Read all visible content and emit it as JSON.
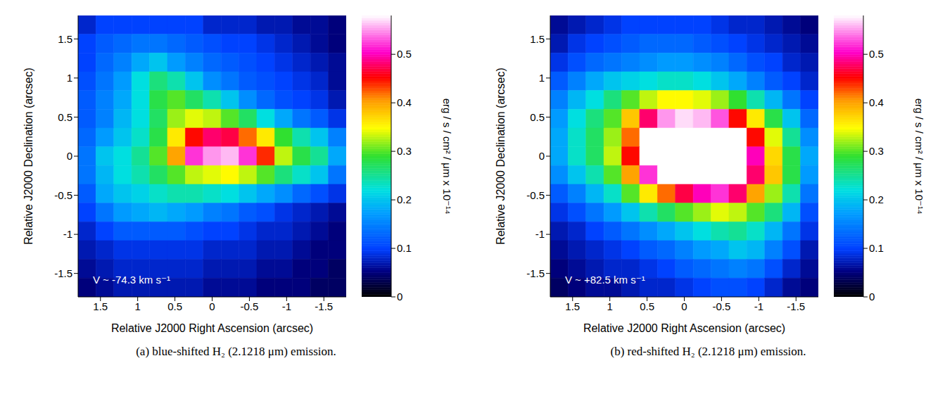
{
  "chart_data": [
    {
      "type": "heatmap",
      "title": "(a) blue-shifted H₂ (2.1218 μm) emission.",
      "xlabel": "Relative J2000 Right Ascension (arcsec)",
      "ylabel": "Relative J2000 Declination (arcsec)",
      "annotation": "V ~ -74.3 km s⁻¹",
      "xlim": [
        1.8,
        -1.8
      ],
      "ylim": [
        -1.8,
        1.8
      ],
      "xticks": [
        1.5,
        1,
        0.5,
        0,
        -0.5,
        -1,
        -1.5
      ],
      "yticks": [
        -1.5,
        -1,
        -0.5,
        0,
        0.5,
        1,
        1.5
      ],
      "x_edges": [
        1.8,
        1.56,
        1.32,
        1.08,
        0.84,
        0.6,
        0.36,
        0.12,
        -0.12,
        -0.36,
        -0.6,
        -0.84,
        -1.08,
        -1.32,
        -1.56,
        -1.8
      ],
      "y_edges": [
        1.8,
        1.56,
        1.32,
        1.08,
        0.84,
        0.6,
        0.36,
        0.12,
        -0.12,
        -0.36,
        -0.6,
        -0.84,
        -1.08,
        -1.32,
        -1.56,
        -1.8
      ],
      "cells": [
        [
          0.08,
          0.1,
          0.1,
          0.1,
          0.1,
          0.1,
          0.1,
          0.08,
          0.08,
          0.08,
          0.07,
          0.07,
          0.06,
          0.06,
          0.05
        ],
        [
          0.1,
          0.12,
          0.13,
          0.14,
          0.14,
          0.13,
          0.12,
          0.11,
          0.1,
          0.1,
          0.09,
          0.08,
          0.07,
          0.06,
          0.05
        ],
        [
          0.1,
          0.13,
          0.15,
          0.18,
          0.2,
          0.17,
          0.15,
          0.13,
          0.12,
          0.11,
          0.1,
          0.09,
          0.08,
          0.07,
          0.06
        ],
        [
          0.11,
          0.14,
          0.17,
          0.22,
          0.26,
          0.24,
          0.2,
          0.16,
          0.14,
          0.12,
          0.11,
          0.1,
          0.09,
          0.08,
          0.06
        ],
        [
          0.12,
          0.15,
          0.18,
          0.22,
          0.28,
          0.3,
          0.27,
          0.24,
          0.2,
          0.16,
          0.13,
          0.11,
          0.1,
          0.09,
          0.07
        ],
        [
          0.12,
          0.15,
          0.19,
          0.22,
          0.27,
          0.32,
          0.34,
          0.33,
          0.3,
          0.27,
          0.22,
          0.18,
          0.14,
          0.12,
          0.09
        ],
        [
          0.13,
          0.17,
          0.2,
          0.23,
          0.28,
          0.36,
          0.45,
          0.48,
          0.47,
          0.42,
          0.36,
          0.29,
          0.24,
          0.2,
          0.15
        ],
        [
          0.14,
          0.2,
          0.22,
          0.25,
          0.3,
          0.4,
          0.52,
          0.55,
          0.56,
          0.52,
          0.44,
          0.33,
          0.28,
          0.25,
          0.18
        ],
        [
          0.14,
          0.19,
          0.22,
          0.24,
          0.27,
          0.3,
          0.33,
          0.34,
          0.35,
          0.33,
          0.3,
          0.26,
          0.23,
          0.2,
          0.14
        ],
        [
          0.12,
          0.18,
          0.2,
          0.21,
          0.23,
          0.24,
          0.24,
          0.23,
          0.22,
          0.2,
          0.18,
          0.16,
          0.13,
          0.11,
          0.09
        ],
        [
          0.1,
          0.14,
          0.17,
          0.18,
          0.19,
          0.18,
          0.17,
          0.15,
          0.14,
          0.12,
          0.11,
          0.09,
          0.08,
          0.07,
          0.06
        ],
        [
          0.08,
          0.1,
          0.12,
          0.12,
          0.12,
          0.12,
          0.11,
          0.1,
          0.1,
          0.09,
          0.08,
          0.08,
          0.07,
          0.06,
          0.05
        ],
        [
          0.07,
          0.08,
          0.09,
          0.09,
          0.09,
          0.09,
          0.09,
          0.08,
          0.08,
          0.08,
          0.07,
          0.07,
          0.06,
          0.05,
          0.05
        ],
        [
          0.06,
          0.07,
          0.08,
          0.08,
          0.08,
          0.08,
          0.08,
          0.07,
          0.07,
          0.07,
          0.06,
          0.06,
          0.05,
          0.05,
          0.04
        ],
        [
          0.05,
          0.06,
          0.07,
          0.07,
          0.07,
          0.07,
          0.07,
          0.06,
          0.06,
          0.06,
          0.05,
          0.05,
          0.05,
          0.04,
          0.04
        ]
      ],
      "colorbar": {
        "range": [
          0,
          0.58
        ],
        "ticks": [
          0,
          0.1,
          0.2,
          0.3,
          0.4,
          0.5
        ],
        "label": "erg / s / cm² / μm  x 10⁻¹⁴"
      }
    },
    {
      "type": "heatmap",
      "title": "(b) red-shifted H₂ (2.1218 μm) emission.",
      "xlabel": "Relative J2000 Right Ascension (arcsec)",
      "ylabel": "Relative J2000 Declination (arcsec)",
      "annotation": "V ~ +82.5 km s⁻¹",
      "xlim": [
        1.8,
        -1.8
      ],
      "ylim": [
        -1.8,
        1.8
      ],
      "xticks": [
        1.5,
        1,
        0.5,
        0,
        -0.5,
        -1,
        -1.5
      ],
      "yticks": [
        -1.5,
        -1,
        -0.5,
        0,
        0.5,
        1,
        1.5
      ],
      "x_edges": [
        1.8,
        1.56,
        1.32,
        1.08,
        0.84,
        0.6,
        0.36,
        0.12,
        -0.12,
        -0.36,
        -0.6,
        -0.84,
        -1.08,
        -1.32,
        -1.56,
        -1.8
      ],
      "y_edges": [
        1.8,
        1.56,
        1.32,
        1.08,
        0.84,
        0.6,
        0.36,
        0.12,
        -0.12,
        -0.36,
        -0.6,
        -0.84,
        -1.08,
        -1.32,
        -1.56,
        -1.8
      ],
      "cells": [
        [
          0.06,
          0.07,
          0.08,
          0.09,
          0.1,
          0.1,
          0.1,
          0.1,
          0.1,
          0.09,
          0.08,
          0.08,
          0.07,
          0.06,
          0.05
        ],
        [
          0.07,
          0.09,
          0.1,
          0.11,
          0.12,
          0.13,
          0.13,
          0.13,
          0.12,
          0.11,
          0.1,
          0.09,
          0.08,
          0.07,
          0.06
        ],
        [
          0.09,
          0.11,
          0.13,
          0.14,
          0.15,
          0.16,
          0.17,
          0.17,
          0.16,
          0.15,
          0.13,
          0.11,
          0.1,
          0.08,
          0.07
        ],
        [
          0.12,
          0.15,
          0.18,
          0.2,
          0.21,
          0.22,
          0.23,
          0.23,
          0.22,
          0.2,
          0.18,
          0.15,
          0.12,
          0.1,
          0.08
        ],
        [
          0.15,
          0.19,
          0.22,
          0.26,
          0.3,
          0.33,
          0.35,
          0.35,
          0.34,
          0.32,
          0.29,
          0.24,
          0.19,
          0.14,
          0.1
        ],
        [
          0.17,
          0.22,
          0.26,
          0.3,
          0.38,
          0.48,
          0.55,
          0.57,
          0.56,
          0.53,
          0.45,
          0.36,
          0.28,
          0.2,
          0.13
        ],
        [
          0.18,
          0.23,
          0.27,
          0.32,
          0.42,
          0.6,
          0.75,
          0.8,
          0.78,
          0.72,
          0.6,
          0.45,
          0.34,
          0.25,
          0.16
        ],
        [
          0.18,
          0.23,
          0.27,
          0.33,
          0.45,
          0.65,
          0.9,
          1.0,
          0.95,
          0.85,
          0.7,
          0.5,
          0.37,
          0.28,
          0.18
        ],
        [
          0.16,
          0.2,
          0.24,
          0.3,
          0.4,
          0.52,
          0.68,
          0.75,
          0.75,
          0.7,
          0.6,
          0.48,
          0.38,
          0.28,
          0.17
        ],
        [
          0.12,
          0.15,
          0.19,
          0.23,
          0.3,
          0.36,
          0.42,
          0.47,
          0.5,
          0.52,
          0.48,
          0.4,
          0.32,
          0.24,
          0.14
        ],
        [
          0.09,
          0.11,
          0.14,
          0.17,
          0.2,
          0.24,
          0.27,
          0.3,
          0.32,
          0.34,
          0.33,
          0.3,
          0.26,
          0.19,
          0.11
        ],
        [
          0.07,
          0.08,
          0.1,
          0.12,
          0.14,
          0.16,
          0.18,
          0.2,
          0.22,
          0.24,
          0.25,
          0.23,
          0.19,
          0.14,
          0.09
        ],
        [
          0.06,
          0.07,
          0.08,
          0.09,
          0.1,
          0.12,
          0.13,
          0.15,
          0.17,
          0.18,
          0.2,
          0.19,
          0.15,
          0.11,
          0.07
        ],
        [
          0.05,
          0.06,
          0.07,
          0.08,
          0.08,
          0.09,
          0.1,
          0.12,
          0.13,
          0.14,
          0.15,
          0.14,
          0.11,
          0.08,
          0.06
        ],
        [
          0.04,
          0.05,
          0.06,
          0.06,
          0.07,
          0.08,
          0.08,
          0.09,
          0.1,
          0.11,
          0.11,
          0.1,
          0.08,
          0.06,
          0.05
        ]
      ],
      "colorbar": {
        "range": [
          0,
          0.58
        ],
        "ticks": [
          0,
          0.1,
          0.2,
          0.3,
          0.4,
          0.5
        ],
        "label": "erg / s / cm² / μm  x 10⁻¹⁴"
      }
    }
  ]
}
